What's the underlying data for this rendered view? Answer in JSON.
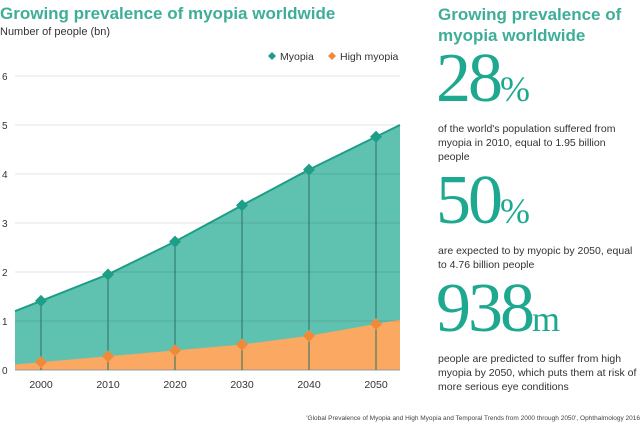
{
  "chart_data": {
    "type": "area",
    "title": "Growing prevalence of myopia worldwide",
    "ylabel": "Number of people (bn)",
    "ylim": [
      0,
      6
    ],
    "yticks": [
      0,
      1,
      2,
      3,
      4,
      5,
      6
    ],
    "x": [
      2000,
      2010,
      2020,
      2030,
      2040,
      2050
    ],
    "series": [
      {
        "name": "Myopia",
        "color": "#5fc1b0",
        "marker": "#1e9e86",
        "values": [
          1.41,
          1.95,
          2.62,
          3.36,
          4.09,
          4.76
        ]
      },
      {
        "name": "High myopia",
        "color": "#fba862",
        "marker": "#f0893a",
        "values": [
          0.16,
          0.28,
          0.4,
          0.52,
          0.7,
          0.94
        ]
      }
    ],
    "grid": true,
    "legend": "top-right"
  },
  "panel": {
    "title": "Growing prevalence of myopia worldwide",
    "stats": [
      {
        "value": "28",
        "unit": "%",
        "text": "of the world's population suffered from myopia in 2010, equal to 1.95 billion people"
      },
      {
        "value": "50",
        "unit": "%",
        "text": "are expected to by myopic by 2050, equal to 4.76 billion people"
      },
      {
        "value": "938",
        "unit": "m",
        "text": "people are predicted to suffer from high myopia by 2050, which puts them at risk of more serious eye conditions"
      }
    ]
  },
  "source": "'Global Prevalence of Myopia and High Myopia and Temporal Trends from 2000 through 2050', Ophthalmology 2016"
}
